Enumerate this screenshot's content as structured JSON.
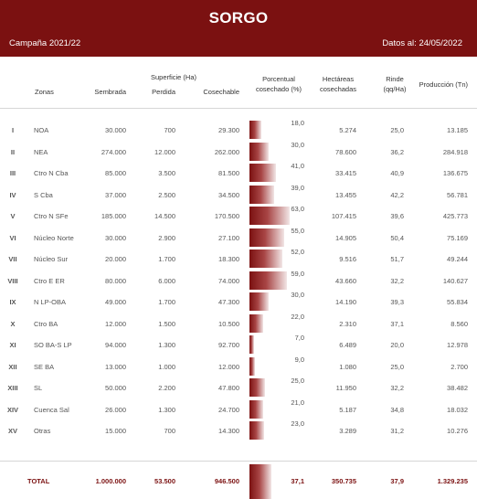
{
  "header": {
    "title": "SORGO",
    "campaign": "Campaña 2021/22",
    "date": "Datos al: 24/05/2022"
  },
  "columns": {
    "zonas": "Zonas",
    "superficie": "Superficie (Ha)",
    "sembrada": "Sembrada",
    "perdida": "Perdida",
    "cosechable": "Cosechable",
    "porcentual": "Porcentual",
    "cosechado": "cosechado (%)",
    "hectareas": "Hectáreas",
    "cosechadas": "cosechadas",
    "rinde": "Rinde",
    "rinde_unit": "(qq/Ha)",
    "produccion": "Producción (Tn)"
  },
  "rows": [
    {
      "num": "I",
      "zona": "NOA",
      "sembrada": "30.000",
      "perdida": "700",
      "cosechable": "29.300",
      "pct": 18.0,
      "pct_label": "18,0",
      "hectareas": "5.274",
      "rinde": "25,0",
      "produccion": "13.185"
    },
    {
      "num": "II",
      "zona": "NEA",
      "sembrada": "274.000",
      "perdida": "12.000",
      "cosechable": "262.000",
      "pct": 30.0,
      "pct_label": "30,0",
      "hectareas": "78.600",
      "rinde": "36,2",
      "produccion": "284.918"
    },
    {
      "num": "III",
      "zona": "Ctro N Cba",
      "sembrada": "85.000",
      "perdida": "3.500",
      "cosechable": "81.500",
      "pct": 41.0,
      "pct_label": "41,0",
      "hectareas": "33.415",
      "rinde": "40,9",
      "produccion": "136.675"
    },
    {
      "num": "IV",
      "zona": "S Cba",
      "sembrada": "37.000",
      "perdida": "2.500",
      "cosechable": "34.500",
      "pct": 39.0,
      "pct_label": "39,0",
      "hectareas": "13.455",
      "rinde": "42,2",
      "produccion": "56.781"
    },
    {
      "num": "V",
      "zona": "Ctro N SFe",
      "sembrada": "185.000",
      "perdida": "14.500",
      "cosechable": "170.500",
      "pct": 63.0,
      "pct_label": "63,0",
      "hectareas": "107.415",
      "rinde": "39,6",
      "produccion": "425.773"
    },
    {
      "num": "VI",
      "zona": "Núcleo Norte",
      "sembrada": "30.000",
      "perdida": "2.900",
      "cosechable": "27.100",
      "pct": 55.0,
      "pct_label": "55,0",
      "hectareas": "14.905",
      "rinde": "50,4",
      "produccion": "75.169"
    },
    {
      "num": "VII",
      "zona": "Núcleo Sur",
      "sembrada": "20.000",
      "perdida": "1.700",
      "cosechable": "18.300",
      "pct": 52.0,
      "pct_label": "52,0",
      "hectareas": "9.516",
      "rinde": "51,7",
      "produccion": "49.244"
    },
    {
      "num": "VIII",
      "zona": "Ctro E ER",
      "sembrada": "80.000",
      "perdida": "6.000",
      "cosechable": "74.000",
      "pct": 59.0,
      "pct_label": "59,0",
      "hectareas": "43.660",
      "rinde": "32,2",
      "produccion": "140.627"
    },
    {
      "num": "IX",
      "zona": "N LP-OBA",
      "sembrada": "49.000",
      "perdida": "1.700",
      "cosechable": "47.300",
      "pct": 30.0,
      "pct_label": "30,0",
      "hectareas": "14.190",
      "rinde": "39,3",
      "produccion": "55.834"
    },
    {
      "num": "X",
      "zona": "Ctro BA",
      "sembrada": "12.000",
      "perdida": "1.500",
      "cosechable": "10.500",
      "pct": 22.0,
      "pct_label": "22,0",
      "hectareas": "2.310",
      "rinde": "37,1",
      "produccion": "8.560"
    },
    {
      "num": "XI",
      "zona": "SO BA-S LP",
      "sembrada": "94.000",
      "perdida": "1.300",
      "cosechable": "92.700",
      "pct": 7.0,
      "pct_label": "7,0",
      "hectareas": "6.489",
      "rinde": "20,0",
      "produccion": "12.978"
    },
    {
      "num": "XII",
      "zona": "SE BA",
      "sembrada": "13.000",
      "perdida": "1.000",
      "cosechable": "12.000",
      "pct": 9.0,
      "pct_label": "9,0",
      "hectareas": "1.080",
      "rinde": "25,0",
      "produccion": "2.700"
    },
    {
      "num": "XIII",
      "zona": "SL",
      "sembrada": "50.000",
      "perdida": "2.200",
      "cosechable": "47.800",
      "pct": 25.0,
      "pct_label": "25,0",
      "hectareas": "11.950",
      "rinde": "32,2",
      "produccion": "38.482"
    },
    {
      "num": "XIV",
      "zona": "Cuenca Sal",
      "sembrada": "26.000",
      "perdida": "1.300",
      "cosechable": "24.700",
      "pct": 21.0,
      "pct_label": "21,0",
      "hectareas": "5.187",
      "rinde": "34,8",
      "produccion": "18.032"
    },
    {
      "num": "XV",
      "zona": "Otras",
      "sembrada": "15.000",
      "perdida": "700",
      "cosechable": "14.300",
      "pct": 23.0,
      "pct_label": "23,0",
      "hectareas": "3.289",
      "rinde": "31,2",
      "produccion": "10.276"
    }
  ],
  "total": {
    "label": "TOTAL",
    "sembrada": "1.000.000",
    "perdida": "53.500",
    "cosechable": "946.500",
    "pct": 37.1,
    "pct_label": "37,1",
    "hectareas": "350.735",
    "rinde": "37,9",
    "produccion": "1.329.235"
  },
  "colors": {
    "header_bg": "#7b1111",
    "bar": "#7b1111",
    "total_text": "#7b1111"
  }
}
